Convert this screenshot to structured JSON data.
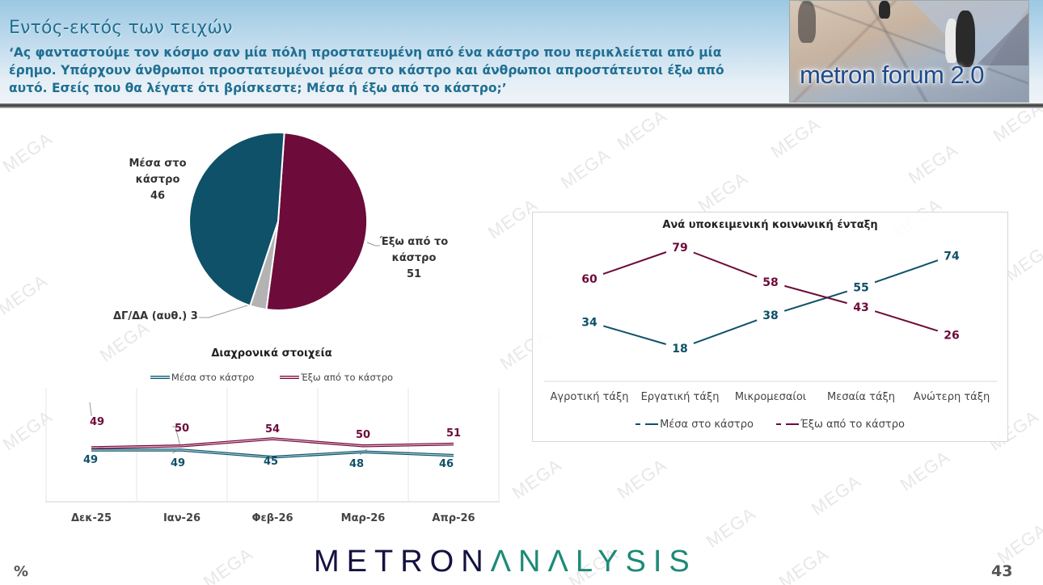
{
  "header": {
    "title": "Εντός-εκτός των τειχών",
    "question": "‘Ας φανταστούμε τον κόσμο σαν μία πόλη προστατευμένη από ένα κάστρο που περικλείεται από μία έρημο. Υπάρχουν άνθρωποι προστατευμένοι μέσα στο κάστρο και άνθρωποι απροστάτευτοι έξω από αυτό. Εσείς που θα λέγατε ότι βρίσκεστε; Μέσα ή έξω από το κάστρο;’",
    "forum_badge": "metron forum 2.0"
  },
  "watermark": "MEGA",
  "colors": {
    "inside": "#0e5168",
    "outside": "#6d0b3a",
    "dk": "#b3b3b3",
    "title_blue": "#1f6f92",
    "logo_dark": "#14123f",
    "logo_teal": "#1e8a78"
  },
  "pie": {
    "labels": {
      "inside_l1": "Μέσα στο",
      "inside_l2": "κάστρο",
      "inside_v": "46",
      "outside_l1": "Έξω από το",
      "outside_l2": "κάστρο",
      "outside_v": "51",
      "dk": "ΔΓ/ΔΑ (αυθ.) 3"
    }
  },
  "timeseries": {
    "title": "Διαχρονικά στοιχεία",
    "legend_inside": "Μέσα στο κάστρο",
    "legend_outside": "Έξω από το κάστρο",
    "x": [
      "Δεκ-25",
      "Ιαν-26",
      "Φεβ-26",
      "Μαρ-26",
      "Απρ-26"
    ]
  },
  "byclass": {
    "title": "Ανά υποκειμενική κοινωνική ένταξη",
    "x": [
      "Αγροτική τάξη",
      "Εργατική τάξη",
      "Μικρομεσαίοι",
      "Μεσαία τάξη",
      "Ανώτερη τάξη"
    ],
    "legend_inside": "Μέσα στο κάστρο",
    "legend_outside": "Έξω από το κάστρο"
  },
  "footer": {
    "logo_part1": "METRON",
    "logo_part2": "ΛNΛLYSIS",
    "unit": "%",
    "page": "43"
  },
  "chart_data": [
    {
      "type": "pie",
      "title": "",
      "categories": [
        "Μέσα στο κάστρο",
        "Έξω από το κάστρο",
        "ΔΓ/ΔΑ (αυθ.)"
      ],
      "values": [
        46,
        51,
        3
      ],
      "colors": [
        "#0e5168",
        "#6d0b3a",
        "#b3b3b3"
      ]
    },
    {
      "type": "line",
      "title": "Διαχρονικά στοιχεία",
      "categories": [
        "Δεκ-25",
        "Ιαν-26",
        "Φεβ-26",
        "Μαρ-26",
        "Απρ-26"
      ],
      "series": [
        {
          "name": "Μέσα στο κάστρο",
          "values": [
            49,
            49,
            45,
            48,
            46
          ],
          "color": "#0e5168"
        },
        {
          "name": "Έξω από το κάστρο",
          "values": [
            49,
            50,
            54,
            50,
            51
          ],
          "color": "#6d0b3a"
        }
      ],
      "xlabel": "",
      "ylabel": "",
      "legend_position": "top",
      "grid": "vertical"
    },
    {
      "type": "line",
      "title": "Ανά υποκειμενική κοινωνική ένταξη",
      "categories": [
        "Αγροτική τάξη",
        "Εργατική τάξη",
        "Μικρομεσαίοι",
        "Μεσαία τάξη",
        "Ανώτερη τάξη"
      ],
      "series": [
        {
          "name": "Μέσα στο κάστρο",
          "values": [
            34,
            18,
            38,
            55,
            74
          ],
          "color": "#0e5168"
        },
        {
          "name": "Έξω από το κάστρο",
          "values": [
            60,
            79,
            58,
            43,
            26
          ],
          "color": "#6d0b3a"
        }
      ],
      "xlabel": "",
      "ylabel": "",
      "legend_position": "bottom",
      "grid": false
    }
  ]
}
